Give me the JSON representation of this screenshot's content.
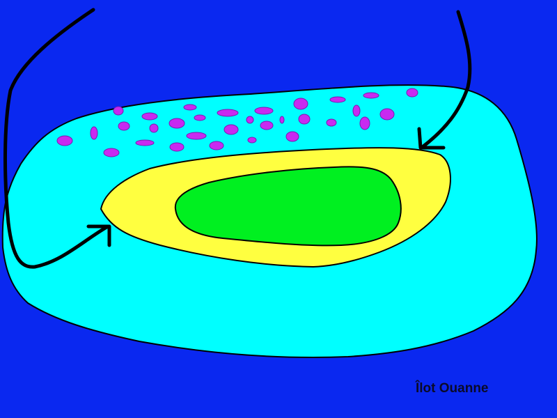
{
  "map": {
    "label": "Îlot Ouanne",
    "colors": {
      "sea": "#0a28f0",
      "lagoon": "#00ffff",
      "beach": "#ffff40",
      "vegetation": "#00f020",
      "reef_spots": "#c82af0",
      "reef_spot_outline": "#7a1ab0",
      "arrows": "#000000",
      "coast_outline": "#000000"
    },
    "icons": [
      "arrow-icon",
      "arrow-icon"
    ]
  }
}
